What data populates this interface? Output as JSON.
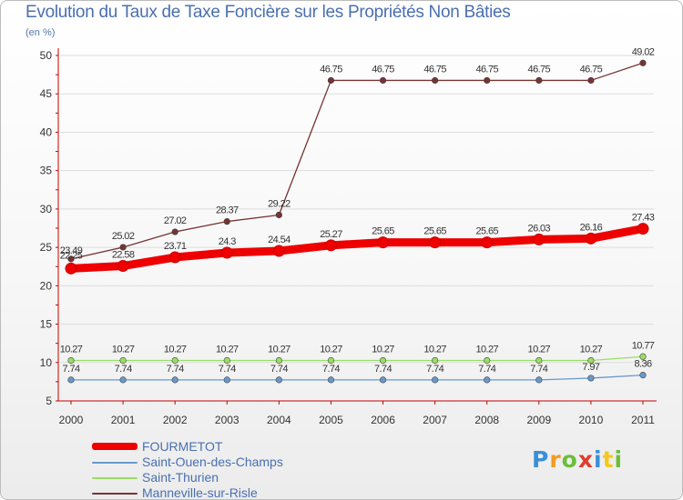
{
  "chart_data": {
    "type": "line",
    "title": "Evolution du Taux de Taxe Foncière sur les Propriétés Non Bâties",
    "ylabel": "(en %)",
    "ylim": [
      5,
      50
    ],
    "yticks": [
      "5",
      "10",
      "15",
      "20",
      "25",
      "30",
      "35",
      "40",
      "45",
      "50"
    ],
    "categories": [
      "2000",
      "2001",
      "2002",
      "2003",
      "2004",
      "2005",
      "2006",
      "2007",
      "2008",
      "2009",
      "2010",
      "2011"
    ],
    "series": [
      {
        "name": "Saint-Thurien",
        "color": "#99dd66",
        "values": [
          10.27,
          10.27,
          10.27,
          10.27,
          10.27,
          10.27,
          10.27,
          10.27,
          10.27,
          10.27,
          10.27,
          10.77
        ],
        "labels": [
          "10.27",
          "10.27",
          "10.27",
          "10.27",
          "10.27",
          "10.27",
          "10.27",
          "10.27",
          "10.27",
          "10.27",
          "10.27",
          "10.77"
        ]
      },
      {
        "name": "Saint-Ouen-des-Champs",
        "color": "#6699cc",
        "values": [
          7.74,
          7.74,
          7.74,
          7.74,
          7.74,
          7.74,
          7.74,
          7.74,
          7.74,
          7.74,
          7.97,
          8.36
        ],
        "labels": [
          "7.74",
          "7.74",
          "7.74",
          "7.74",
          "7.74",
          "7.74",
          "7.74",
          "7.74",
          "7.74",
          "7.74",
          "7.97",
          "8.36"
        ]
      },
      {
        "name": "Manneville-sur-Risle",
        "color": "#773333",
        "values": [
          23.49,
          25.02,
          27.02,
          28.37,
          29.22,
          46.75,
          46.75,
          46.75,
          46.75,
          46.75,
          46.75,
          49.02
        ],
        "labels": [
          "23.49",
          "25.02",
          "27.02",
          "28.37",
          "29.22",
          "46.75",
          "46.75",
          "46.75",
          "46.75",
          "46.75",
          "46.75",
          "49.02"
        ]
      },
      {
        "name": "FOURMETOT",
        "color": "#ee0000",
        "values": [
          22.25,
          22.58,
          23.71,
          24.3,
          24.54,
          25.27,
          25.65,
          25.65,
          25.65,
          26.03,
          26.16,
          27.43
        ],
        "labels": [
          "22.25",
          "22.58",
          "23.71",
          "24.3",
          "24.54",
          "25.27",
          "25.65",
          "25.65",
          "25.65",
          "26.03",
          "26.16",
          "27.43"
        ]
      }
    ],
    "legend": [
      {
        "name": "FOURMETOT",
        "color": "#ee0000"
      },
      {
        "name": "Saint-Ouen-des-Champs",
        "color": "#6699cc"
      },
      {
        "name": "Saint-Thurien",
        "color": "#99dd66"
      },
      {
        "name": "Manneville-sur-Risle",
        "color": "#773333"
      }
    ]
  },
  "logo": {
    "letters": [
      "P",
      "r",
      "o",
      "x",
      "i",
      "t",
      "i"
    ],
    "colors": [
      "#3a8fd6",
      "#f29a1e",
      "#6abf3a",
      "#e23c2c",
      "#3a8fd6",
      "#f2c81e",
      "#6abf3a"
    ]
  }
}
